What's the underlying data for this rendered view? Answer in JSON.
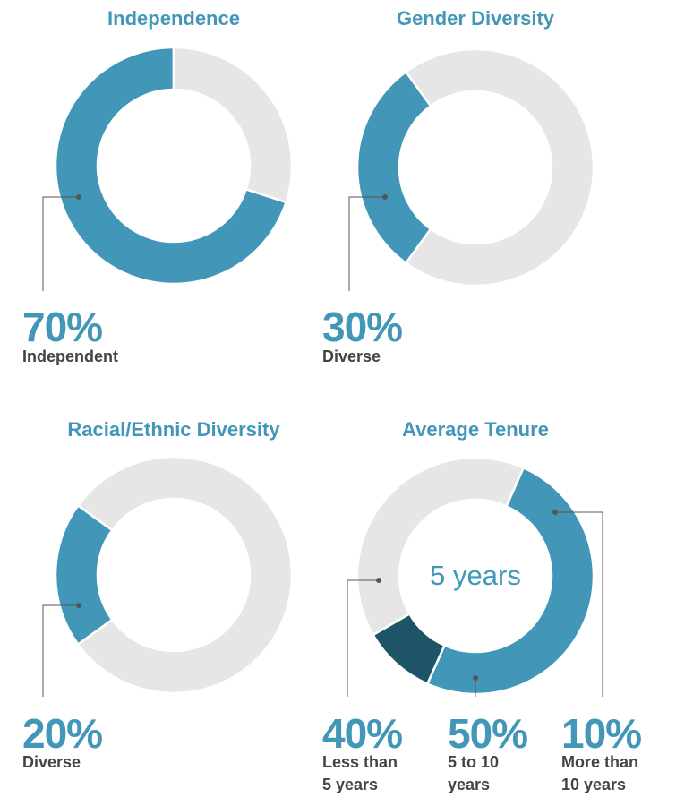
{
  "chart_data": [
    {
      "type": "donut",
      "title": "Independence",
      "categories": [
        "Independent",
        null
      ],
      "values": [
        70,
        30
      ],
      "value_labels": [
        "70%",
        null
      ],
      "colors": [
        "#4297b8",
        "#e6e6e6"
      ]
    },
    {
      "type": "donut",
      "title": "Gender Diversity",
      "categories": [
        "Diverse",
        null
      ],
      "values": [
        30,
        70
      ],
      "value_labels": [
        "30%",
        null
      ],
      "colors": [
        "#4297b8",
        "#e6e6e6"
      ]
    },
    {
      "type": "donut",
      "title": "Racial/Ethnic Diversity",
      "categories": [
        "Diverse",
        null
      ],
      "values": [
        20,
        80
      ],
      "value_labels": [
        "20%",
        null
      ],
      "colors": [
        "#4297b8",
        "#e6e6e6"
      ]
    },
    {
      "type": "donut",
      "title": "Average Tenure",
      "annotation": "5 years",
      "categories": [
        "Less than 5 years",
        "5 to 10 years",
        "More than 10 years"
      ],
      "values": [
        40,
        50,
        10
      ],
      "value_labels": [
        "40%",
        "50%",
        "10%"
      ],
      "colors": [
        "#e6e6e6",
        "#4297b8",
        "#1d5566"
      ]
    }
  ]
}
